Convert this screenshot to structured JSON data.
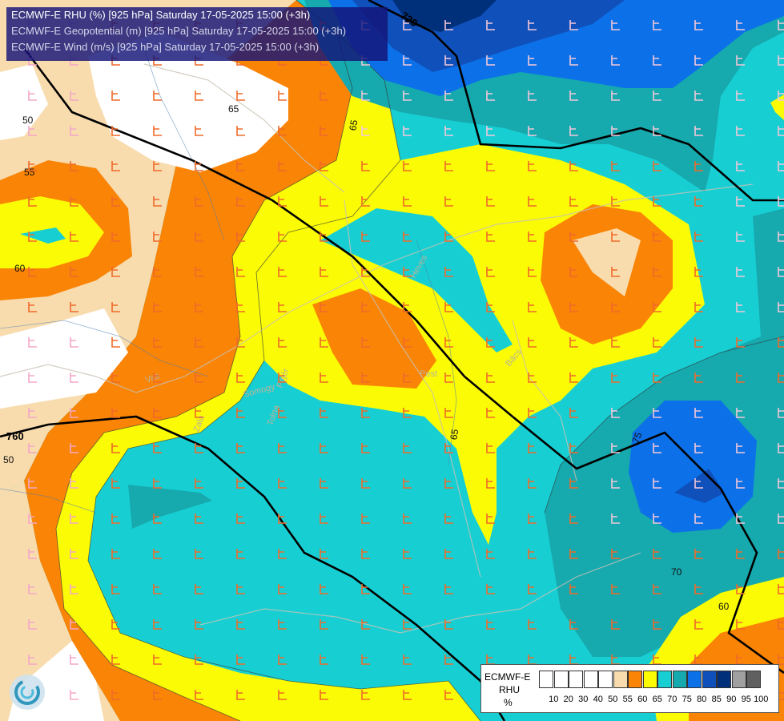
{
  "titles": [
    "ECMWF-E RHU (%) [925 hPa] Saturday 17-05-2025 15:00 (+3h)",
    "ECMWF-E Geopotential (m) [925 hPa] Saturday 17-05-2025 15:00 (+3h)",
    "ECMWF-E Wind (m/s) [925 hPa] Saturday 17-05-2025 15:00 (+3h)"
  ],
  "legend": {
    "model": "ECMWF-E",
    "variable": "RHU",
    "unit": "%",
    "ticks": [
      "10",
      "20",
      "30",
      "40",
      "50",
      "55",
      "60",
      "65",
      "70",
      "75",
      "80",
      "85",
      "90",
      "95",
      "100"
    ],
    "colors": [
      "#ffffff",
      "#ffffff",
      "#ffffff",
      "#ffffff",
      "#ffffff",
      "#f8dcae",
      "#f98406",
      "#fbfb05",
      "#17cfd3",
      "#16a9ae",
      "#0c71e8",
      "#1050bb",
      "#00307a",
      "#a0a0a0",
      "#606060"
    ]
  },
  "contour_labels": [
    "50",
    "55",
    "60",
    "65",
    "65",
    "65",
    "70",
    "75",
    "60",
    "50"
  ],
  "geopotential_labels": [
    "720",
    "760"
  ],
  "place_labels": [
    "Somogy",
    "Fejér",
    "Tolna",
    "Zala",
    "Vas",
    "Pest",
    "Bács",
    "Heves"
  ],
  "colors": {
    "rh_55": "#f8dcae",
    "rh_60": "#f98406",
    "rh_65": "#fbfb05",
    "rh_70": "#17cfd3",
    "rh_75": "#16a9ae",
    "rh_80": "#0c71e8",
    "rh_85": "#1050bb",
    "rh_90": "#00307a"
  }
}
